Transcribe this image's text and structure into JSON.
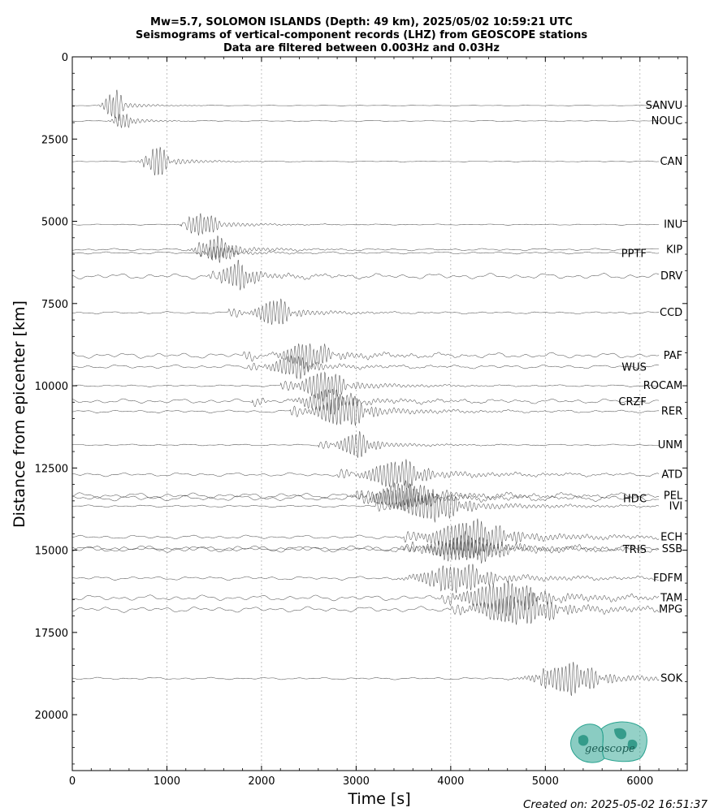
{
  "chart_data": {
    "type": "line",
    "title": [
      "Mw=5.7, SOLOMON ISLANDS (Depth: 49 km), 2025/05/02 10:59:21 UTC",
      "Seismograms of vertical-component records (LHZ) from GEOSCOPE stations",
      "Data are filtered between 0.003Hz and 0.03Hz"
    ],
    "xlabel": "Time [s]",
    "ylabel": "Distance from epicenter [km]",
    "xlim": [
      0,
      6500
    ],
    "ylim": [
      21700,
      0
    ],
    "y_inverted": true,
    "xticks": [
      0,
      1000,
      2000,
      3000,
      4000,
      5000,
      6000
    ],
    "yticks": [
      0,
      2500,
      5000,
      7500,
      10000,
      12500,
      15000,
      17500,
      20000
    ],
    "grid": "vertical dotted at x ticks",
    "series": [
      {
        "name": "SANVU",
        "distance": 1480,
        "onset": 400,
        "peak": 430,
        "amp": 1.6,
        "noise": 0.03,
        "tail": 250,
        "label_side": "right"
      },
      {
        "name": "NOUC",
        "distance": 1950,
        "onset": 500,
        "peak": 540,
        "amp": 1.1,
        "noise": 0.05,
        "tail": 250,
        "label_side": "right"
      },
      {
        "name": "CAN",
        "distance": 3180,
        "onset": 750,
        "peak": 900,
        "amp": 1.5,
        "noise": 0.05,
        "tail": 350,
        "label_side": "right"
      },
      {
        "name": "INU",
        "distance": 5100,
        "onset": 1150,
        "peak": 1370,
        "amp": 1.4,
        "noise": 0.06,
        "tail": 400,
        "label_side": "right"
      },
      {
        "name": "KIP",
        "distance": 5860,
        "onset": 1300,
        "peak": 1520,
        "amp": 1.3,
        "noise": 0.12,
        "tail": 500,
        "label_side": "right"
      },
      {
        "name": "PPTF",
        "distance": 5960,
        "onset": 1350,
        "peak": 1560,
        "amp": 0.8,
        "noise": 0.12,
        "tail": 450,
        "label_side": "left"
      },
      {
        "name": "DRV",
        "distance": 6670,
        "onset": 1450,
        "peak": 1750,
        "amp": 1.4,
        "noise": 0.3,
        "tail": 500,
        "label_side": "right"
      },
      {
        "name": "CCD",
        "distance": 7780,
        "onset": 1650,
        "peak": 2130,
        "amp": 1.5,
        "noise": 0.12,
        "tail": 500,
        "label_side": "right"
      },
      {
        "name": "PAF",
        "distance": 9080,
        "onset": 1800,
        "peak": 2480,
        "amp": 1.5,
        "noise": 0.3,
        "tail": 650,
        "label_side": "right"
      },
      {
        "name": "WUS",
        "distance": 9420,
        "onset": 1850,
        "peak": 2330,
        "amp": 1.2,
        "noise": 0.2,
        "tail": 600,
        "label_side": "left"
      },
      {
        "name": "ROCAM",
        "distance": 10000,
        "onset": 2200,
        "peak": 2650,
        "amp": 1.7,
        "noise": 0.1,
        "tail": 600,
        "label_side": "right"
      },
      {
        "name": "CRZF",
        "distance": 10470,
        "onset": 1900,
        "peak": 2700,
        "amp": 1.3,
        "noise": 0.25,
        "tail": 700,
        "label_side": "left"
      },
      {
        "name": "RER",
        "distance": 10780,
        "onset": 2300,
        "peak": 2850,
        "amp": 1.8,
        "noise": 0.15,
        "tail": 700,
        "label_side": "right"
      },
      {
        "name": "UNM",
        "distance": 11800,
        "onset": 2600,
        "peak": 3000,
        "amp": 1.3,
        "noise": 0.08,
        "tail": 500,
        "label_side": "right"
      },
      {
        "name": "ATD",
        "distance": 12700,
        "onset": 2800,
        "peak": 3420,
        "amp": 1.6,
        "noise": 0.2,
        "tail": 800,
        "label_side": "right"
      },
      {
        "name": "PEL",
        "distance": 13340,
        "onset": 3000,
        "peak": 3500,
        "amp": 1.4,
        "noise": 0.3,
        "tail": 900,
        "label_side": "right"
      },
      {
        "name": "HDC",
        "distance": 13420,
        "onset": 3000,
        "peak": 3480,
        "amp": 1.2,
        "noise": 0.3,
        "tail": 900,
        "label_side": "left"
      },
      {
        "name": "IVI",
        "distance": 13660,
        "onset": 3200,
        "peak": 3800,
        "amp": 1.6,
        "noise": 0.12,
        "tail": 900,
        "label_side": "right"
      },
      {
        "name": "ECH",
        "distance": 14600,
        "onset": 3500,
        "peak": 4200,
        "amp": 1.8,
        "noise": 0.2,
        "tail": 1100,
        "label_side": "right"
      },
      {
        "name": "SSB",
        "distance": 14960,
        "onset": 3500,
        "peak": 4150,
        "amp": 1.5,
        "noise": 0.35,
        "tail": 1100,
        "label_side": "right"
      },
      {
        "name": "TRIS",
        "distance": 14960,
        "onset": 3500,
        "peak": 4150,
        "amp": 1.0,
        "noise": 0.3,
        "tail": 1000,
        "label_side": "left"
      },
      {
        "name": "FDFM",
        "distance": 15850,
        "onset": 3800,
        "peak": 4050,
        "amp": 1.5,
        "noise": 0.2,
        "tail": 1000,
        "label_side": "right"
      },
      {
        "name": "TAM",
        "distance": 16450,
        "onset": 3900,
        "peak": 4550,
        "amp": 1.7,
        "noise": 0.3,
        "tail": 1100,
        "label_side": "right"
      },
      {
        "name": "MPG",
        "distance": 16800,
        "onset": 4000,
        "peak": 4700,
        "amp": 1.7,
        "noise": 0.3,
        "tail": 1100,
        "label_side": "right"
      },
      {
        "name": "SOK",
        "distance": 18900,
        "onset": 4900,
        "peak": 5250,
        "amp": 1.6,
        "noise": 0.12,
        "tail": 900,
        "label_side": "right"
      }
    ]
  },
  "logo": {
    "text": "geoscope",
    "color": "#2aa390"
  },
  "footer": {
    "created": "Created on: 2025-05-02 16:51:37"
  }
}
